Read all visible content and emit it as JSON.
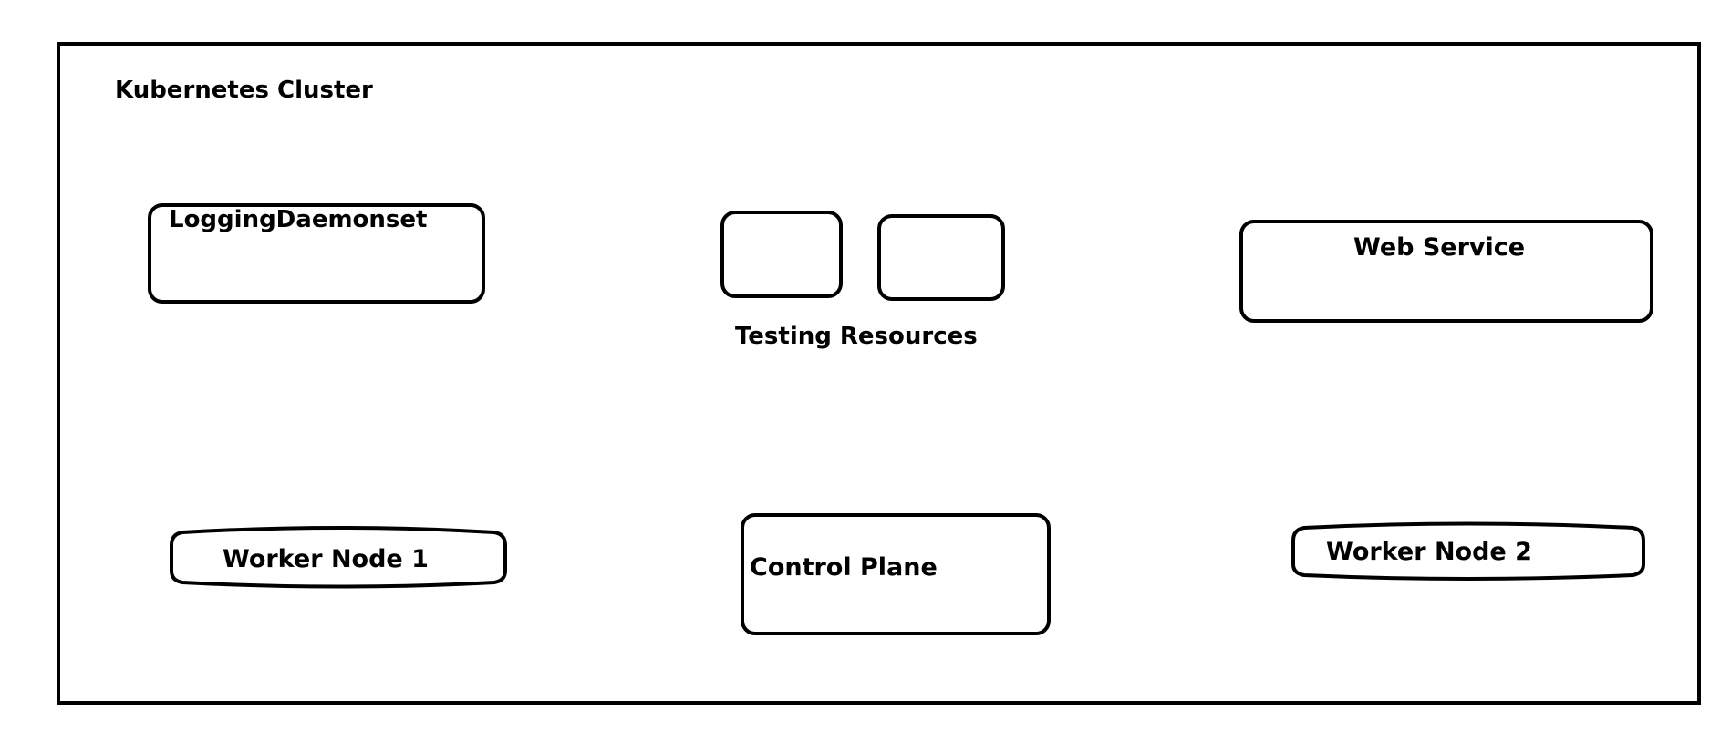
{
  "diagram": {
    "cluster_label": "Kubernetes Cluster",
    "logging_label": "LoggingDaemonset",
    "testing_label": "Testing Resources",
    "web_label": "Web Service",
    "worker1_label": "Worker Node 1",
    "control_label": "Control Plane",
    "worker2_label": "Worker Node 2"
  }
}
